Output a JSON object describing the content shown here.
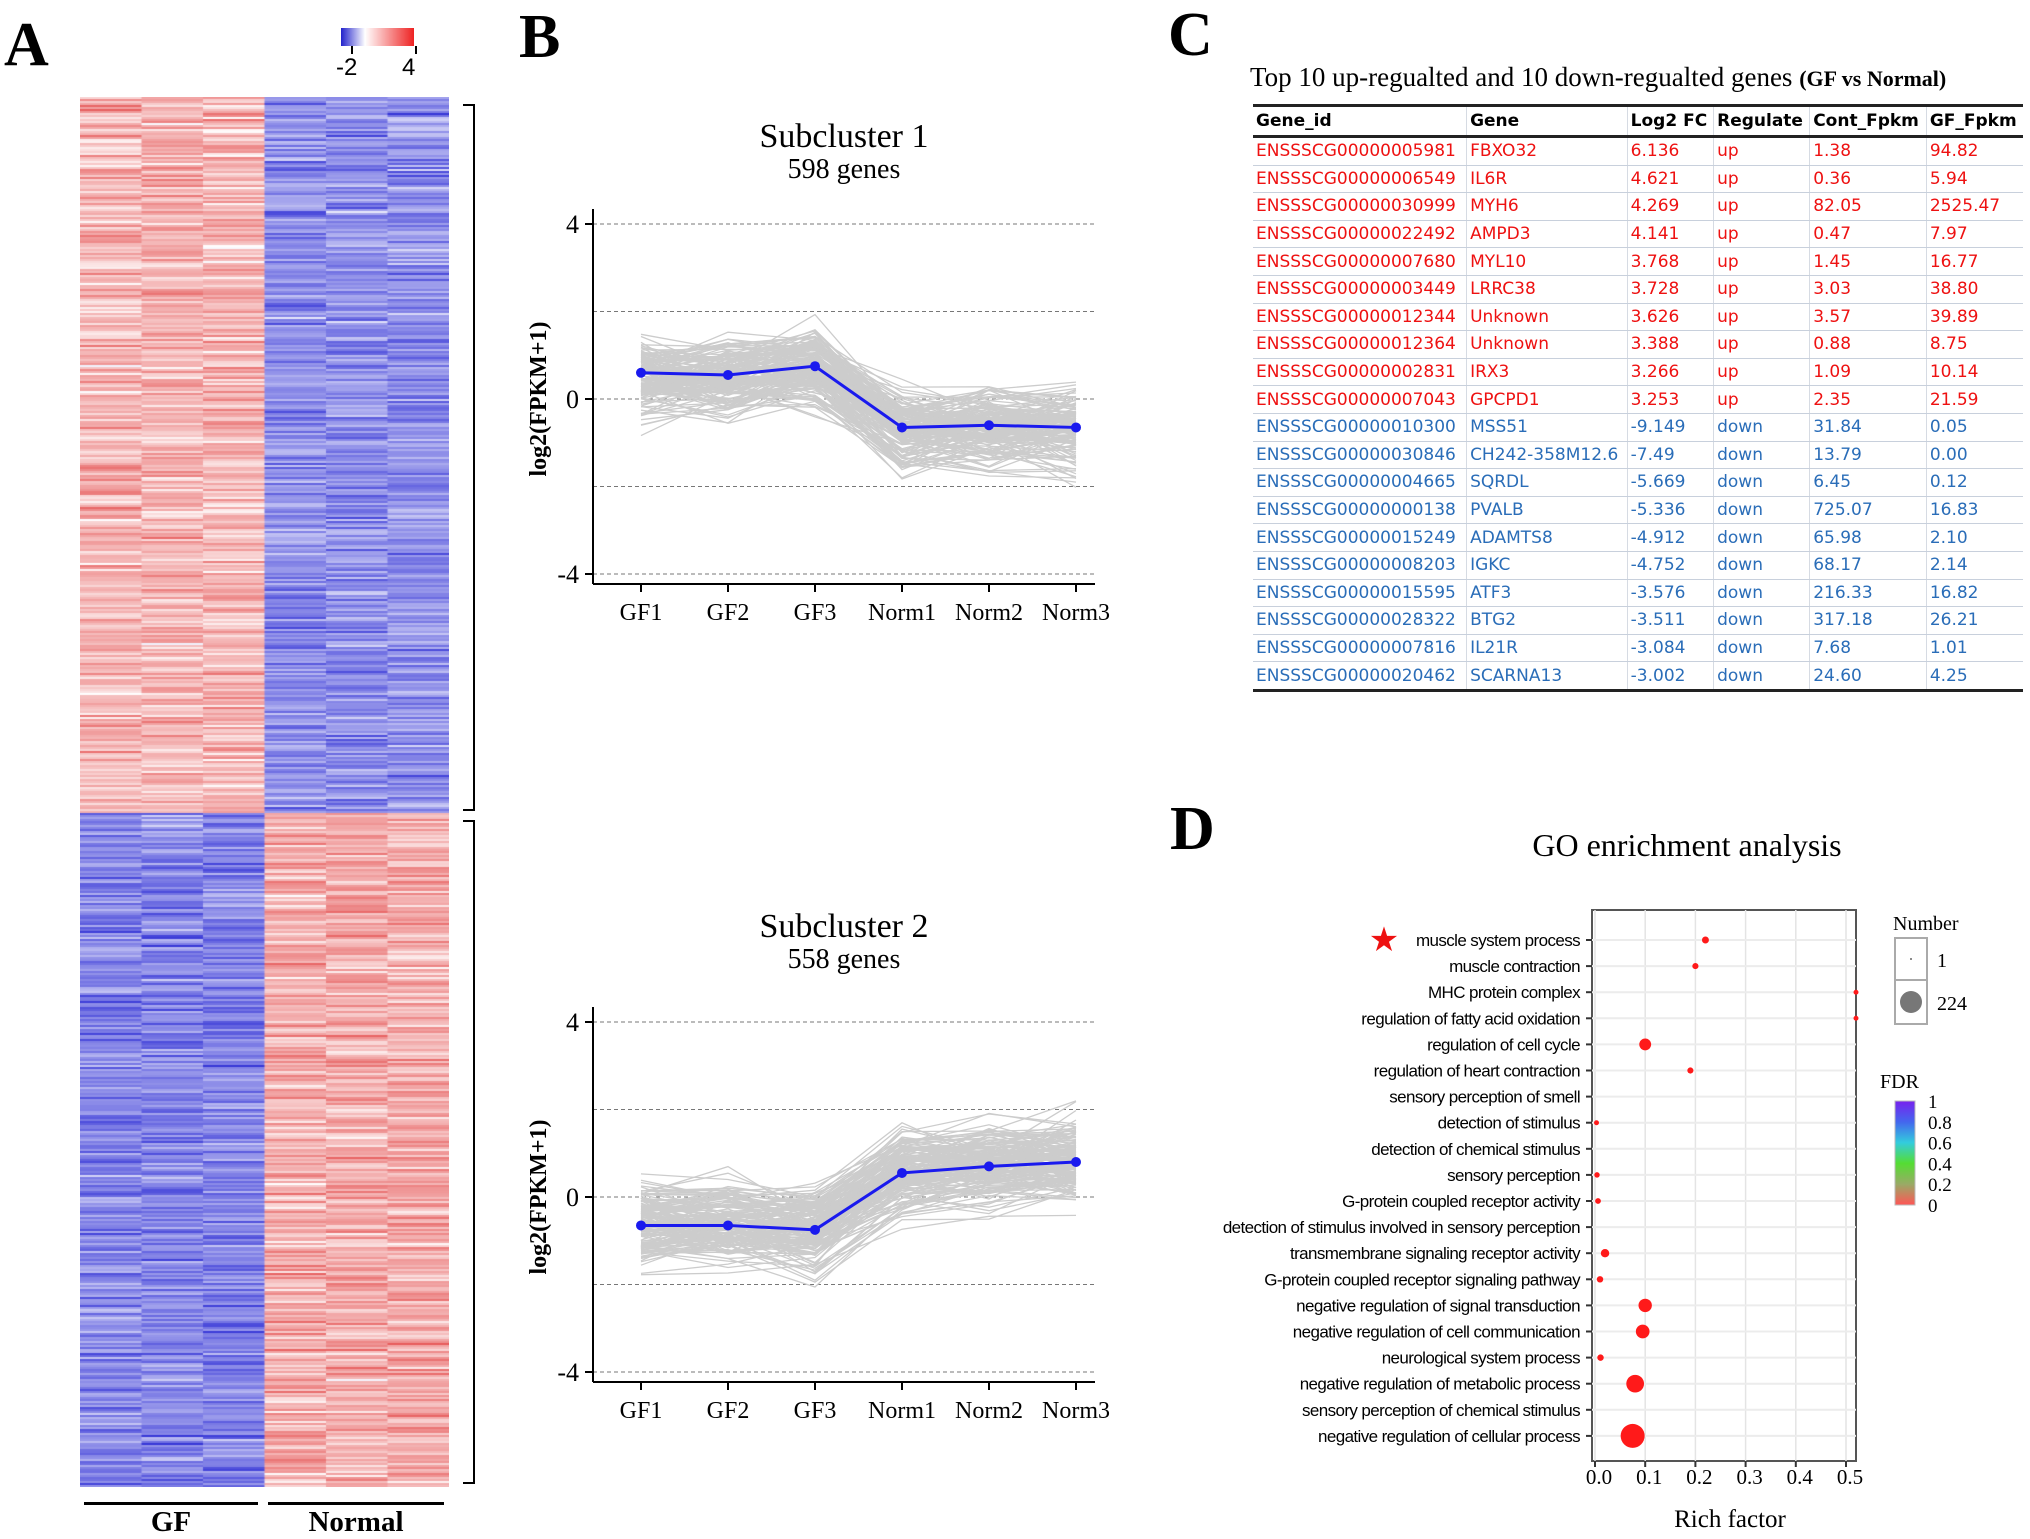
{
  "panels": {
    "a": "A",
    "b": "B",
    "c": "C",
    "d": "D"
  },
  "heatmap": {
    "colorbar": {
      "min_label": "-2",
      "max_label": "4",
      "low_color": "#3333cc",
      "high_color": "#ee3333"
    },
    "groups": [
      "GF",
      "Normal"
    ]
  },
  "chart_data": [
    {
      "type": "line",
      "title": "Subcluster 1",
      "subtitle": "598 genes",
      "ylabel": "log2(FPKM+1)",
      "categories": [
        "GF1",
        "GF2",
        "GF3",
        "Norm1",
        "Norm2",
        "Norm3"
      ],
      "yticks": [
        "4",
        "0",
        "-4"
      ],
      "ylim": [
        -4,
        4
      ],
      "gridlines": [
        4,
        2,
        0,
        -2,
        -4
      ],
      "mean_line": [
        0.6,
        0.55,
        0.75,
        -0.65,
        -0.6,
        -0.65
      ],
      "mean_color": "#1a1aee",
      "profile_color": "#cccccc"
    },
    {
      "type": "line",
      "title": "Subcluster 2",
      "subtitle": "558 genes",
      "ylabel": "log2(FPKM+1)",
      "categories": [
        "GF1",
        "GF2",
        "GF3",
        "Norm1",
        "Norm2",
        "Norm3"
      ],
      "yticks": [
        "4",
        "0",
        "-4"
      ],
      "ylim": [
        -4,
        4
      ],
      "gridlines": [
        4,
        2,
        0,
        -2,
        -4
      ],
      "mean_line": [
        -0.65,
        -0.65,
        -0.75,
        0.55,
        0.7,
        0.8
      ],
      "mean_color": "#1a1aee",
      "profile_color": "#cccccc"
    },
    {
      "type": "scatter",
      "title": "GO enrichment analysis",
      "xlabel": "Rich factor",
      "xlim": [
        0,
        0.52
      ],
      "xticks": [
        "0.0",
        "0.1",
        "0.2",
        "0.3",
        "0.4",
        "0.5"
      ],
      "terms": [
        {
          "label": "muscle system process",
          "rich": 0.22,
          "number": 8,
          "starred": true
        },
        {
          "label": "muscle contraction",
          "rich": 0.2,
          "number": 5
        },
        {
          "label": "MHC protein complex",
          "rich": 0.52,
          "number": 2
        },
        {
          "label": "regulation of fatty acid oxidation",
          "rich": 0.525,
          "number": 2
        },
        {
          "label": "regulation of cell cycle",
          "rich": 0.1,
          "number": 40
        },
        {
          "label": "regulation of heart contraction",
          "rich": 0.19,
          "number": 5
        },
        {
          "label": "sensory perception of smell",
          "rich": 0.0,
          "number": 1
        },
        {
          "label": "detection of stimulus",
          "rich": 0.003,
          "number": 2
        },
        {
          "label": "detection of chemical stimulus",
          "rich": 0.0,
          "number": 1
        },
        {
          "label": "sensory perception",
          "rich": 0.004,
          "number": 3
        },
        {
          "label": "G-protein coupled receptor activity",
          "rich": 0.006,
          "number": 4
        },
        {
          "label": "detection of stimulus involved in sensory perception",
          "rich": 0.0,
          "number": 1
        },
        {
          "label": "transmembrane signaling receptor activity",
          "rich": 0.02,
          "number": 15
        },
        {
          "label": "G-protein coupled receptor signaling pathway",
          "rich": 0.01,
          "number": 6
        },
        {
          "label": "negative regulation of signal transduction",
          "rich": 0.1,
          "number": 55
        },
        {
          "label": "negative regulation of cell communication",
          "rich": 0.095,
          "number": 58
        },
        {
          "label": "neurological system process",
          "rich": 0.011,
          "number": 6
        },
        {
          "label": "negative regulation of metabolic process",
          "rich": 0.08,
          "number": 110
        },
        {
          "label": "sensory perception of chemical stimulus",
          "rich": 0.0,
          "number": 1
        },
        {
          "label": "negative regulation of cellular process",
          "rich": 0.075,
          "number": 224
        }
      ],
      "legend_number": {
        "title": "Number",
        "values": [
          "1",
          "224"
        ]
      },
      "legend_fdr": {
        "title": "FDR",
        "ticks": [
          "1",
          "0.8",
          "0.6",
          "0.4",
          "0.2",
          "0"
        ]
      },
      "point_color": "#ff1a1a"
    }
  ],
  "table": {
    "title": "Top 10 up-regualted  and 10 down-regualted genes",
    "title_suffix": "(GF vs Normal)",
    "columns": [
      "Gene_id",
      "Gene",
      "Log2 FC",
      "Regulate",
      "Cont_Fpkm",
      "GF_Fpkm"
    ],
    "rows": [
      [
        "ENSSSCG00000005981",
        "FBXO32",
        "6.136",
        "up",
        "1.38",
        "94.82"
      ],
      [
        "ENSSSCG00000006549",
        "IL6R",
        "4.621",
        "up",
        "0.36",
        "5.94"
      ],
      [
        "ENSSSCG00000030999",
        "MYH6",
        "4.269",
        "up",
        "82.05",
        "2525.47"
      ],
      [
        "ENSSSCG00000022492",
        "AMPD3",
        "4.141",
        "up",
        "0.47",
        "7.97"
      ],
      [
        "ENSSSCG00000007680",
        "MYL10",
        "3.768",
        "up",
        "1.45",
        "16.77"
      ],
      [
        "ENSSSCG00000003449",
        "LRRC38",
        "3.728",
        "up",
        "3.03",
        "38.80"
      ],
      [
        "ENSSSCG00000012344",
        "Unknown",
        "3.626",
        "up",
        "3.57",
        "39.89"
      ],
      [
        "ENSSSCG00000012364",
        "Unknown",
        "3.388",
        "up",
        "0.88",
        "8.75"
      ],
      [
        "ENSSSCG00000002831",
        "IRX3",
        "3.266",
        "up",
        "1.09",
        "10.14"
      ],
      [
        "ENSSSCG00000007043",
        "GPCPD1",
        "3.253",
        "up",
        "2.35",
        "21.59"
      ],
      [
        "ENSSSCG00000010300",
        "MSS51",
        "-9.149",
        "down",
        "31.84",
        "0.05"
      ],
      [
        "ENSSSCG00000030846",
        "CH242-358M12.6",
        "-7.49",
        "down",
        "13.79",
        "0.00"
      ],
      [
        "ENSSSCG00000004665",
        "SQRDL",
        "-5.669",
        "down",
        "6.45",
        "0.12"
      ],
      [
        "ENSSSCG00000000138",
        "PVALB",
        "-5.336",
        "down",
        "725.07",
        "16.83"
      ],
      [
        "ENSSSCG00000015249",
        "ADAMTS8",
        "-4.912",
        "down",
        "65.98",
        "2.10"
      ],
      [
        "ENSSSCG00000008203",
        "IGKC",
        "-4.752",
        "down",
        "68.17",
        "2.14"
      ],
      [
        "ENSSSCG00000015595",
        "ATF3",
        "-3.576",
        "down",
        "216.33",
        "16.82"
      ],
      [
        "ENSSSCG00000028322",
        "BTG2",
        "-3.511",
        "down",
        "317.18",
        "26.21"
      ],
      [
        "ENSSSCG00000007816",
        "IL21R",
        "-3.084",
        "down",
        "7.68",
        "1.01"
      ],
      [
        "ENSSSCG00000020462",
        "SCARNA13",
        "-3.002",
        "down",
        "24.60",
        "4.25"
      ]
    ]
  }
}
